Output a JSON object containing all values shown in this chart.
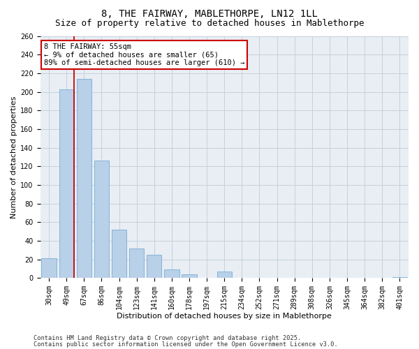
{
  "title": "8, THE FAIRWAY, MABLETHORPE, LN12 1LL",
  "subtitle": "Size of property relative to detached houses in Mablethorpe",
  "xlabel": "Distribution of detached houses by size in Mablethorpe",
  "ylabel": "Number of detached properties",
  "bar_labels": [
    "30sqm",
    "49sqm",
    "67sqm",
    "86sqm",
    "104sqm",
    "123sqm",
    "141sqm",
    "160sqm",
    "178sqm",
    "197sqm",
    "215sqm",
    "234sqm",
    "252sqm",
    "271sqm",
    "289sqm",
    "308sqm",
    "326sqm",
    "345sqm",
    "364sqm",
    "382sqm",
    "401sqm"
  ],
  "bar_values": [
    21,
    203,
    214,
    126,
    52,
    32,
    25,
    9,
    4,
    0,
    7,
    0,
    0,
    0,
    0,
    0,
    0,
    0,
    0,
    0,
    1
  ],
  "bar_color": "#b8d0e8",
  "bar_edge_color": "#7aadd4",
  "vline_color": "#cc0000",
  "annotation_title": "8 THE FAIRWAY: 55sqm",
  "annotation_line1": "← 9% of detached houses are smaller (65)",
  "annotation_line2": "89% of semi-detached houses are larger (610) →",
  "annotation_box_facecolor": "#ffffff",
  "annotation_box_edgecolor": "#cc0000",
  "ylim": [
    0,
    260
  ],
  "yticks": [
    0,
    20,
    40,
    60,
    80,
    100,
    120,
    140,
    160,
    180,
    200,
    220,
    240,
    260
  ],
  "footer1": "Contains HM Land Registry data © Crown copyright and database right 2025.",
  "footer2": "Contains public sector information licensed under the Open Government Licence v3.0.",
  "bg_color": "#ffffff",
  "plot_bg_color": "#e8eef4",
  "title_fontsize": 10,
  "subtitle_fontsize": 9,
  "axis_label_fontsize": 8,
  "tick_fontsize": 7,
  "annotation_fontsize": 7.5,
  "footer_fontsize": 6.2
}
